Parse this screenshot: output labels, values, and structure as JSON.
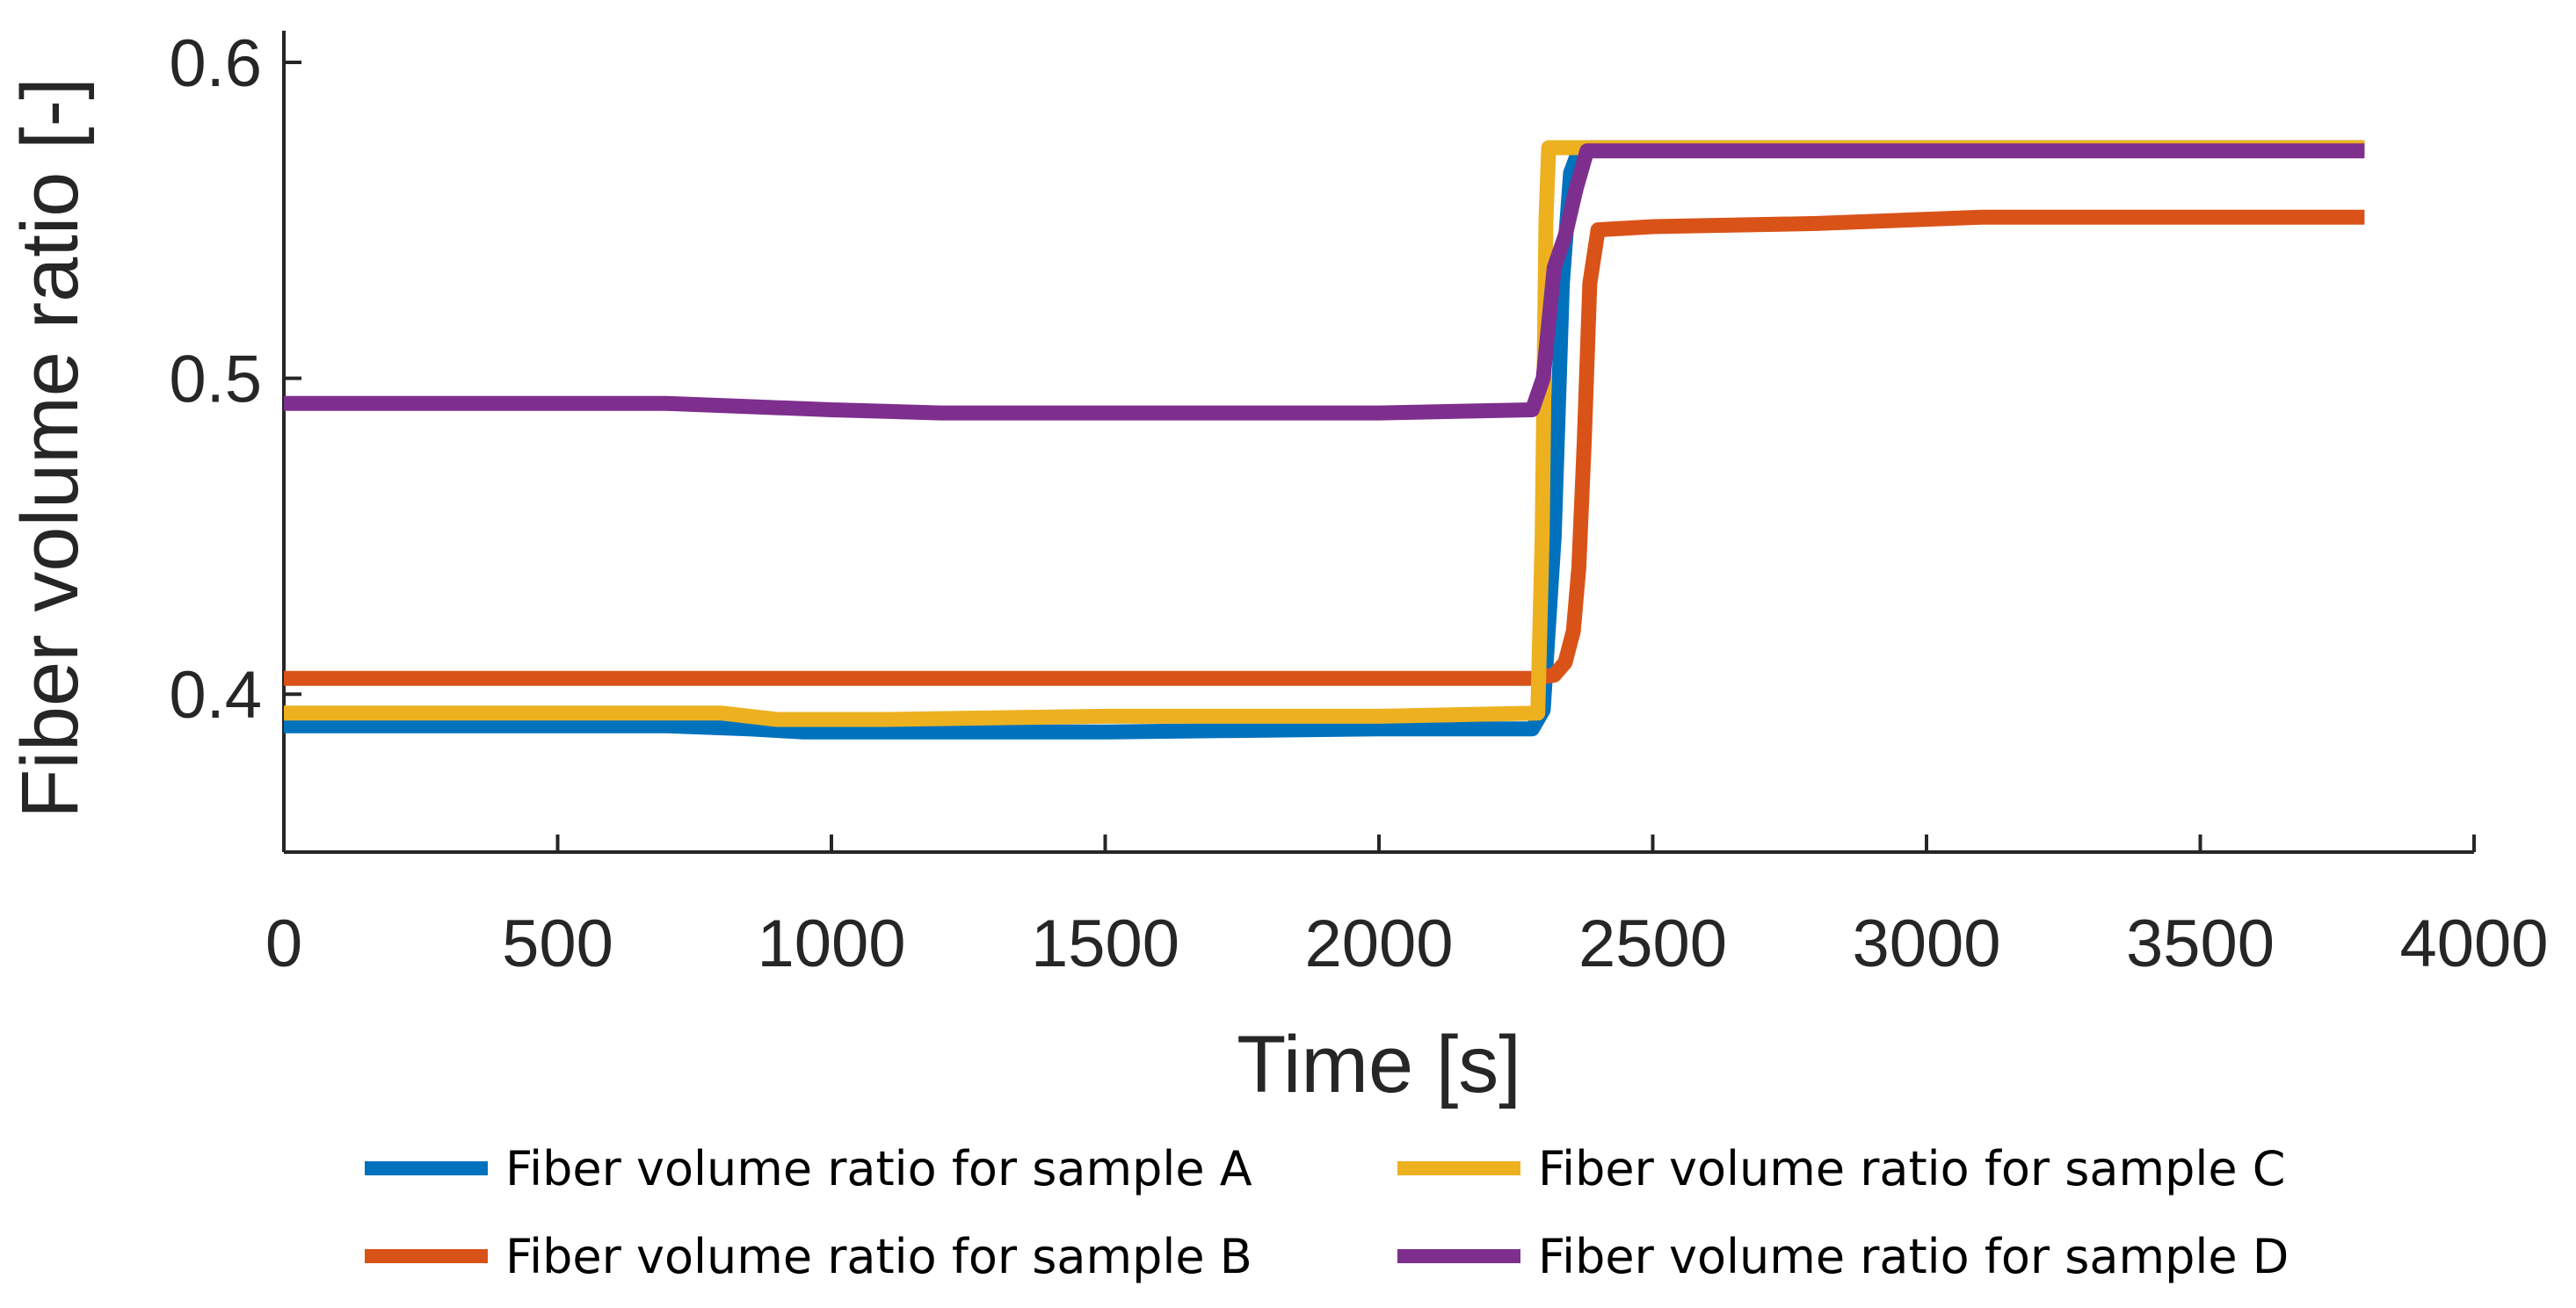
{
  "chart_data": {
    "type": "line",
    "title": "",
    "xlabel": "Time [s]",
    "ylabel": "Fiber volume ratio [-]",
    "xlim": [
      0,
      4000
    ],
    "ylim": [
      0.35,
      0.61
    ],
    "xticks": [
      "0",
      "500",
      "1000",
      "1500",
      "2000",
      "2500",
      "3000",
      "3500",
      "4000"
    ],
    "yticks": [
      "0.4",
      "0.5",
      "0.6"
    ],
    "grid": false,
    "legend_position": "bottom",
    "series": [
      {
        "name": "Fiber volume ratio for sample A",
        "color": "#0072BD",
        "x": [
          0,
          700,
          850,
          950,
          1100,
          1500,
          2000,
          2280,
          2300,
          2320,
          2335,
          2350,
          2365,
          2380,
          3000,
          3800
        ],
        "y": [
          0.39,
          0.39,
          0.389,
          0.388,
          0.388,
          0.388,
          0.389,
          0.389,
          0.395,
          0.45,
          0.53,
          0.565,
          0.572,
          0.573,
          0.573,
          0.573
        ]
      },
      {
        "name": "Fiber volume ratio for sample B",
        "color": "#D95319",
        "x": [
          0,
          1000,
          2000,
          2280,
          2320,
          2340,
          2355,
          2365,
          2375,
          2385,
          2400,
          2500,
          2800,
          3100,
          3800
        ],
        "y": [
          0.405,
          0.405,
          0.405,
          0.405,
          0.406,
          0.41,
          0.42,
          0.44,
          0.48,
          0.53,
          0.547,
          0.548,
          0.549,
          0.551,
          0.551
        ]
      },
      {
        "name": "Fiber volume ratio for sample C",
        "color": "#EDB120",
        "x": [
          0,
          800,
          900,
          1100,
          1500,
          2000,
          2290,
          2298,
          2305,
          2310,
          2380,
          3800
        ],
        "y": [
          0.394,
          0.394,
          0.392,
          0.392,
          0.393,
          0.393,
          0.394,
          0.45,
          0.55,
          0.573,
          0.573,
          0.573
        ]
      },
      {
        "name": "Fiber volume ratio for sample D",
        "color": "#7E2F8E",
        "x": [
          0,
          700,
          850,
          1000,
          1200,
          1500,
          2000,
          2280,
          2300,
          2320,
          2340,
          2360,
          2380,
          3000,
          3800
        ],
        "y": [
          0.492,
          0.492,
          0.491,
          0.49,
          0.489,
          0.489,
          0.489,
          0.49,
          0.5,
          0.535,
          0.545,
          0.56,
          0.572,
          0.572,
          0.572
        ]
      }
    ]
  }
}
